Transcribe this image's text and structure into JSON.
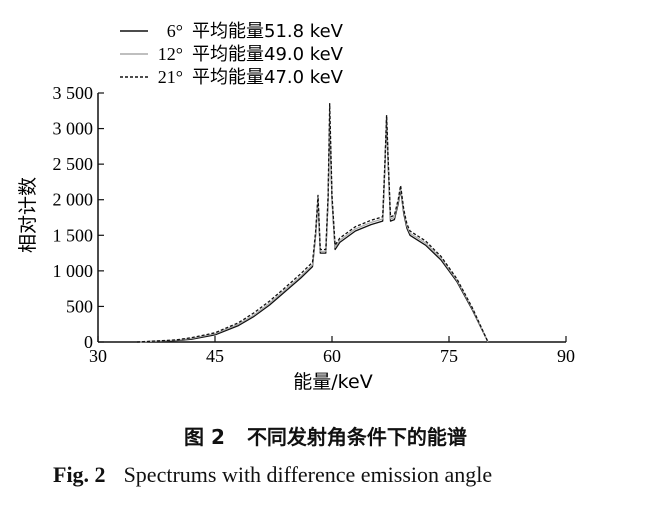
{
  "chart_data": {
    "type": "line",
    "title": "",
    "xlabel": "能量/keV",
    "ylabel": "相对计数",
    "xlim": [
      30,
      90
    ],
    "ylim": [
      0,
      3500
    ],
    "xticks": [
      30,
      45,
      60,
      75,
      90
    ],
    "yticks": [
      0,
      500,
      1000,
      1500,
      2000,
      2500,
      3000,
      3500
    ],
    "ytick_labels": [
      "0",
      "500",
      "1 000",
      "1 500",
      "2 000",
      "2 500",
      "3 000",
      "3 500"
    ],
    "grid": false,
    "legend_position": "top-left",
    "series": [
      {
        "name": "6° 平均能量51.8 keV",
        "style": "solid",
        "color": "#111111",
        "x": [
          35,
          40,
          42,
          45,
          48,
          50,
          52,
          54,
          56,
          57.5,
          57.9,
          58.2,
          58.5,
          59.2,
          59.5,
          59.7,
          60.0,
          60.4,
          61,
          63,
          65,
          66.5,
          66.8,
          67.0,
          67.2,
          67.5,
          68,
          68.5,
          68.8,
          69.2,
          69.6,
          70,
          72,
          74,
          76,
          78,
          80
        ],
        "y": [
          0,
          20,
          40,
          100,
          230,
          360,
          520,
          710,
          900,
          1060,
          1500,
          2000,
          1250,
          1250,
          2000,
          3100,
          2000,
          1300,
          1400,
          1560,
          1650,
          1700,
          2500,
          3150,
          2500,
          1700,
          1720,
          1950,
          2150,
          1800,
          1600,
          1500,
          1360,
          1150,
          850,
          450,
          0
        ]
      },
      {
        "name": "12° 平均能量49.0 keV",
        "style": "solid",
        "color": "#aaaaaa",
        "x": [
          35,
          40,
          42,
          45,
          48,
          50,
          52,
          54,
          56,
          57.5,
          57.9,
          58.2,
          58.5,
          59.2,
          59.5,
          59.7,
          60.0,
          60.4,
          61,
          63,
          65,
          66.5,
          66.8,
          67.0,
          67.2,
          67.5,
          68,
          68.5,
          68.8,
          69.2,
          69.6,
          70,
          72,
          74,
          76,
          78,
          80
        ],
        "y": [
          0,
          25,
          50,
          115,
          250,
          380,
          545,
          735,
          925,
          1085,
          1520,
          2030,
          1275,
          1275,
          2030,
          3200,
          2030,
          1330,
          1430,
          1590,
          1680,
          1730,
          2530,
          3170,
          2530,
          1730,
          1750,
          1980,
          2170,
          1830,
          1630,
          1530,
          1390,
          1175,
          870,
          465,
          0
        ]
      },
      {
        "name": "21° 平均能量47.0 keV",
        "style": "dashed",
        "color": "#111111",
        "x": [
          35,
          40,
          42,
          45,
          48,
          50,
          52,
          54,
          56,
          57.5,
          57.9,
          58.2,
          58.5,
          59.2,
          59.5,
          59.7,
          60.0,
          60.4,
          61,
          63,
          65,
          66.5,
          66.8,
          67.0,
          67.2,
          67.5,
          68,
          68.5,
          68.8,
          69.2,
          69.6,
          70,
          72,
          74,
          76,
          78,
          80
        ],
        "y": [
          0,
          30,
          60,
          130,
          270,
          410,
          575,
          765,
          960,
          1120,
          1550,
          2060,
          1300,
          1300,
          2060,
          3350,
          2060,
          1360,
          1460,
          1620,
          1710,
          1760,
          2560,
          3190,
          2560,
          1760,
          1780,
          2010,
          2200,
          1860,
          1660,
          1560,
          1420,
          1200,
          890,
          480,
          0
        ]
      }
    ]
  },
  "legend": [
    {
      "angle": "6°",
      "text": "平均能量51.8 keV"
    },
    {
      "angle": "12°",
      "text": "平均能量49.0 keV"
    },
    {
      "angle": "21°",
      "text": "平均能量47.0 keV"
    }
  ],
  "caption": {
    "cn_number": "图 2",
    "cn_text": "不同发射角条件下的能谱",
    "en_number": "Fig. 2",
    "en_text": "Spectrums with difference emission angle"
  }
}
